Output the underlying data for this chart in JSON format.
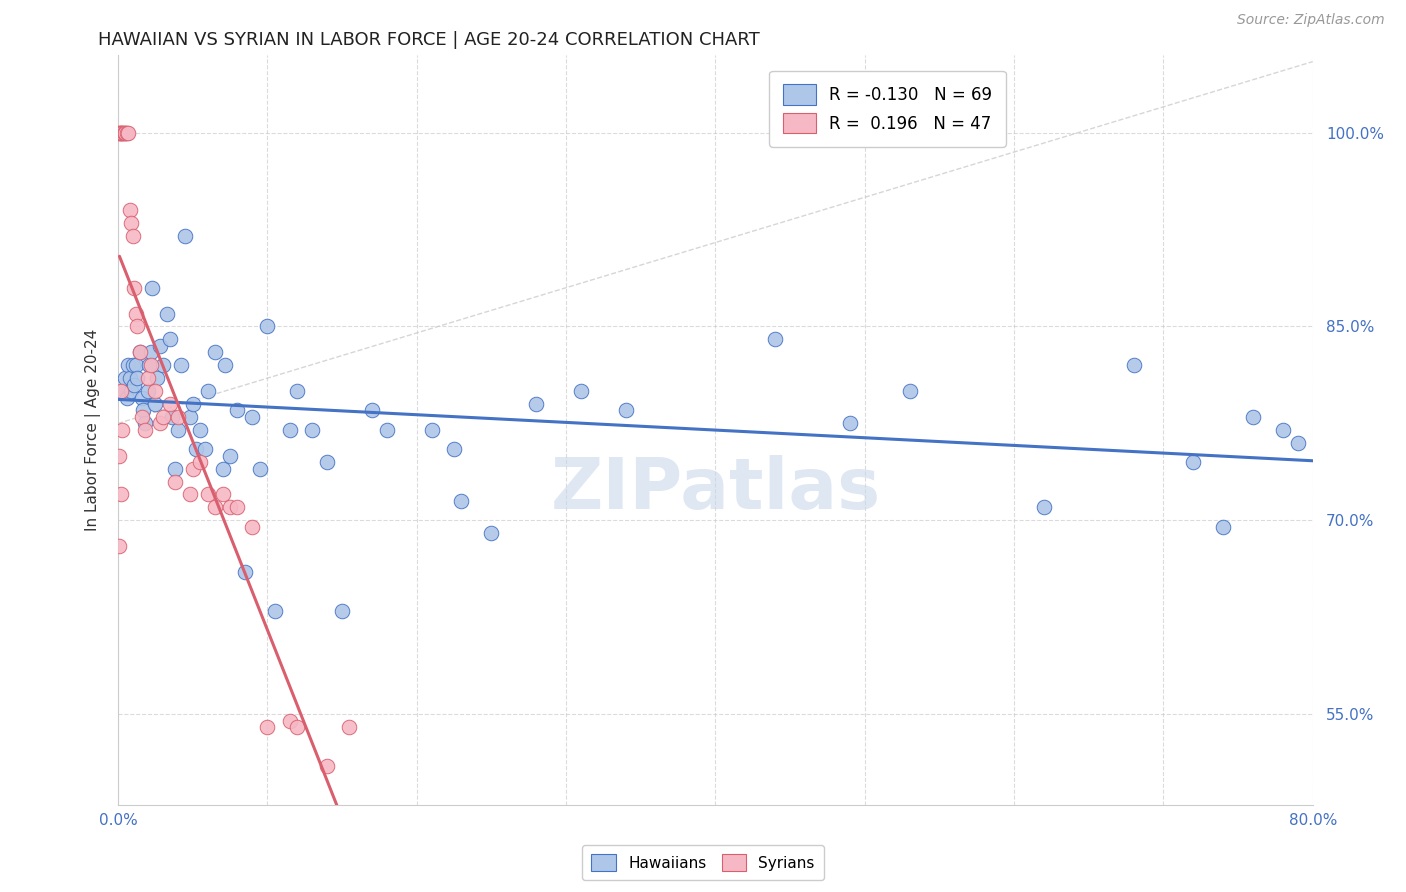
{
  "title": "HAWAIIAN VS SYRIAN IN LABOR FORCE | AGE 20-24 CORRELATION CHART",
  "source_text": "Source: ZipAtlas.com",
  "ylabel": "In Labor Force | Age 20-24",
  "xlim": [
    0.0,
    0.8
  ],
  "ylim": [
    0.48,
    1.06
  ],
  "xticks": [
    0.0,
    0.1,
    0.2,
    0.3,
    0.4,
    0.5,
    0.6,
    0.7,
    0.8
  ],
  "ytick_positions": [
    0.55,
    0.7,
    0.85,
    1.0
  ],
  "ytick_labels": [
    "55.0%",
    "70.0%",
    "85.0%",
    "100.0%"
  ],
  "hawaiians_R": -0.13,
  "hawaiians_N": 69,
  "syrians_R": 0.196,
  "syrians_N": 47,
  "hawaiians_color": "#aec6e8",
  "syrians_color": "#f5b8c4",
  "hawaiians_line_color": "#4472c4",
  "syrians_line_color": "#d95f6e",
  "watermark_text": "ZIPatlas",
  "watermark_color": "#c8d8ea",
  "hawaiians_x": [
    0.003,
    0.005,
    0.006,
    0.007,
    0.008,
    0.009,
    0.01,
    0.011,
    0.012,
    0.013,
    0.015,
    0.016,
    0.017,
    0.018,
    0.02,
    0.021,
    0.022,
    0.023,
    0.025,
    0.026,
    0.028,
    0.03,
    0.033,
    0.035,
    0.036,
    0.038,
    0.04,
    0.042,
    0.045,
    0.048,
    0.05,
    0.052,
    0.055,
    0.058,
    0.06,
    0.065,
    0.07,
    0.072,
    0.075,
    0.08,
    0.085,
    0.09,
    0.095,
    0.1,
    0.105,
    0.115,
    0.12,
    0.13,
    0.14,
    0.15,
    0.17,
    0.18,
    0.21,
    0.225,
    0.23,
    0.25,
    0.28,
    0.31,
    0.34,
    0.44,
    0.49,
    0.53,
    0.62,
    0.68,
    0.72,
    0.74,
    0.76,
    0.78,
    0.79
  ],
  "hawaiians_y": [
    0.8,
    0.81,
    0.795,
    0.82,
    0.81,
    0.8,
    0.82,
    0.805,
    0.82,
    0.81,
    0.83,
    0.795,
    0.785,
    0.775,
    0.8,
    0.82,
    0.83,
    0.88,
    0.79,
    0.81,
    0.835,
    0.82,
    0.86,
    0.84,
    0.78,
    0.74,
    0.77,
    0.82,
    0.92,
    0.78,
    0.79,
    0.755,
    0.77,
    0.755,
    0.8,
    0.83,
    0.74,
    0.82,
    0.75,
    0.785,
    0.66,
    0.78,
    0.74,
    0.85,
    0.63,
    0.77,
    0.8,
    0.77,
    0.745,
    0.63,
    0.785,
    0.77,
    0.77,
    0.755,
    0.715,
    0.69,
    0.79,
    0.8,
    0.785,
    0.84,
    0.775,
    0.8,
    0.71,
    0.82,
    0.745,
    0.695,
    0.78,
    0.77,
    0.76
  ],
  "syrians_x": [
    0.001,
    0.001,
    0.002,
    0.002,
    0.003,
    0.003,
    0.004,
    0.005,
    0.005,
    0.006,
    0.007,
    0.008,
    0.009,
    0.01,
    0.011,
    0.012,
    0.013,
    0.015,
    0.016,
    0.018,
    0.02,
    0.022,
    0.025,
    0.028,
    0.03,
    0.035,
    0.038,
    0.04,
    0.048,
    0.05,
    0.055,
    0.06,
    0.065,
    0.07,
    0.075,
    0.08,
    0.09,
    0.1,
    0.115,
    0.12,
    0.14,
    0.155,
    0.001,
    0.001,
    0.002,
    0.002,
    0.003
  ],
  "syrians_y": [
    1.0,
    1.0,
    1.0,
    1.0,
    1.0,
    1.0,
    1.0,
    1.0,
    1.0,
    1.0,
    1.0,
    0.94,
    0.93,
    0.92,
    0.88,
    0.86,
    0.85,
    0.83,
    0.78,
    0.77,
    0.81,
    0.82,
    0.8,
    0.775,
    0.78,
    0.79,
    0.73,
    0.78,
    0.72,
    0.74,
    0.745,
    0.72,
    0.71,
    0.72,
    0.71,
    0.71,
    0.695,
    0.54,
    0.545,
    0.54,
    0.51,
    0.54,
    0.68,
    0.75,
    0.72,
    0.8,
    0.77
  ]
}
